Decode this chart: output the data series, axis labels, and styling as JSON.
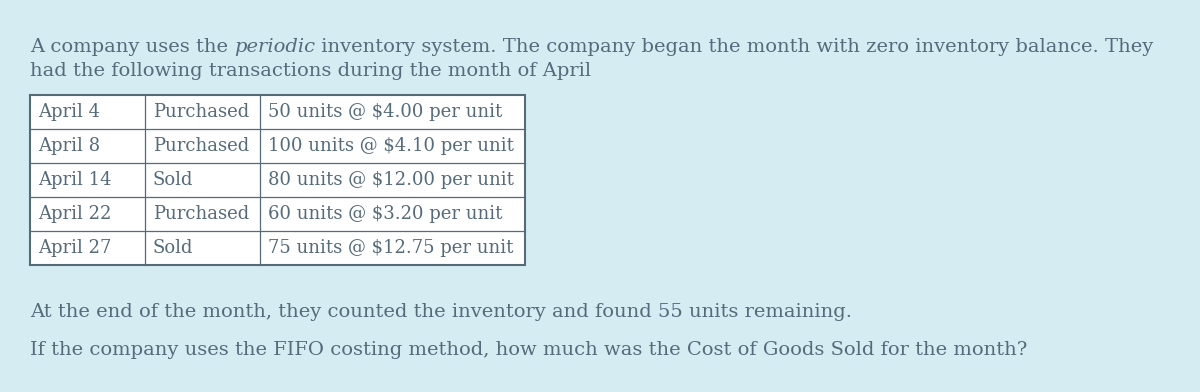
{
  "background_color": "#d6ecf3",
  "text_color": "#556b7a",
  "font_family": "DejaVu Serif",
  "intro_before_italic": "A company uses the ",
  "intro_italic": "periodic",
  "intro_after_italic": " inventory system. The company began the month with zero inventory balance. They",
  "intro_line2": "had the following transactions during the month of April",
  "table_rows": [
    [
      "April 4",
      "Purchased",
      "50 units @ $4.00 per unit"
    ],
    [
      "April 8",
      "Purchased",
      "100 units @ $4.10 per unit"
    ],
    [
      "April 14",
      "Sold",
      "80 units @ $12.00 per unit"
    ],
    [
      "April 22",
      "Purchased",
      "60 units @ $3.20 per unit"
    ],
    [
      "April 27",
      "Sold",
      "75 units @ $12.75 per unit"
    ]
  ],
  "footer_line1": "At the end of the month, they counted the inventory and found 55 units remaining.",
  "footer_line2": "If the company uses the FIFO costing method, how much was the Cost of Goods Sold for the month?",
  "table_border_color": "#556b7a",
  "font_size_body": 14,
  "font_size_table": 13
}
